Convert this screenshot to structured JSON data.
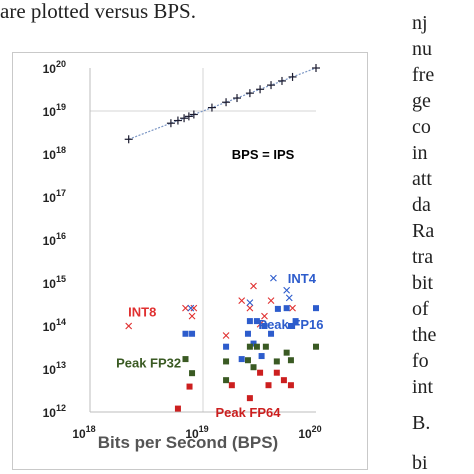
{
  "page": {
    "top_caption": "are plotted versus BPS.",
    "right_column_fragments": [
      "nj",
      "nu",
      "fre",
      "ge",
      "co",
      "in",
      "att",
      "da",
      "Ra",
      "tra",
      "bit",
      "of",
      "the",
      "fo",
      "int",
      "B.",
      "bi"
    ]
  },
  "chart_data": {
    "type": "scatter",
    "title": "",
    "xlabel": "Bits per Second (BPS)",
    "ylabel": "",
    "xscale": "log",
    "yscale": "log",
    "xlim": [
      1e+18,
      1e+20
    ],
    "ylim": [
      1000000000000.0,
      1e+20
    ],
    "x_ticks": [
      1e+18,
      1e+19,
      1e+20
    ],
    "y_ticks": [
      1000000000000.0,
      10000000000000.0,
      100000000000000.0,
      1000000000000000.0,
      1e+16,
      1e+17,
      1e+18,
      1e+19,
      1e+20
    ],
    "x_tick_labels": [
      [
        "10",
        "18"
      ],
      [
        "10",
        "19"
      ],
      [
        "10",
        "20"
      ]
    ],
    "y_tick_labels": [
      [
        "10",
        "12"
      ],
      [
        "10",
        "13"
      ],
      [
        "10",
        "14"
      ],
      [
        "10",
        "15"
      ],
      [
        "10",
        "16"
      ],
      [
        "10",
        "17"
      ],
      [
        "10",
        "18"
      ],
      [
        "10",
        "19"
      ],
      [
        "10",
        "20"
      ]
    ],
    "grid": "major lines at 10^19 (x) and 10^19 (y)",
    "series": [
      {
        "name": "BPS = IPS",
        "marker": "plus",
        "color": "#1a1a2e",
        "line": true,
        "line_color": "#7b96c4",
        "points": [
          [
            2.2e+18,
            2.2e+18
          ],
          [
            5.2e+18,
            5.2e+18
          ],
          [
            6e+18,
            6e+18
          ],
          [
            6.8e+18,
            6.8e+18
          ],
          [
            7.5e+18,
            7.5e+18
          ],
          [
            8.3e+18,
            8.3e+18
          ],
          [
            1.2e+19,
            1.2e+19
          ],
          [
            1.6e+19,
            1.6e+19
          ],
          [
            2e+19,
            2e+19
          ],
          [
            2.6e+19,
            2.6e+19
          ],
          [
            3.2e+19,
            3.2e+19
          ],
          [
            4e+19,
            4e+19
          ],
          [
            5e+19,
            5e+19
          ],
          [
            6.2e+19,
            6.2e+19
          ],
          [
            1e+20,
            1e+20
          ]
        ]
      },
      {
        "name": "INT8",
        "marker": "x",
        "color": "#e03030",
        "points": [
          [
            2.2e+18,
            100000000000000.0
          ],
          [
            7e+18,
            260000000000000.0
          ],
          [
            8e+18,
            170000000000000.0
          ],
          [
            8.3e+18,
            260000000000000.0
          ],
          [
            1.6e+19,
            60000000000000.0
          ],
          [
            2.2e+19,
            390000000000000.0
          ],
          [
            2.6e+19,
            260000000000000.0
          ],
          [
            2.8e+19,
            850000000000000.0
          ],
          [
            3.2e+19,
            110000000000000.0
          ],
          [
            3.5e+19,
            170000000000000.0
          ],
          [
            4e+19,
            390000000000000.0
          ],
          [
            6.2e+19,
            260000000000000.0
          ]
        ]
      },
      {
        "name": "INT4",
        "marker": "x",
        "color": "#2d5ccc",
        "points": [
          [
            7.8e+18,
            260000000000000.0
          ],
          [
            2.6e+19,
            350000000000000.0
          ],
          [
            4.2e+19,
            1300000000000000.0
          ],
          [
            5.5e+19,
            680000000000000.0
          ],
          [
            5.8e+19,
            450000000000000.0
          ]
        ]
      },
      {
        "name": "Peak FP16",
        "marker": "square",
        "color": "#2d5ccc",
        "points": [
          [
            7e+18,
            66000000000000.0
          ],
          [
            8e+18,
            66000000000000.0
          ],
          [
            1.6e+19,
            33000000000000.0
          ],
          [
            2.2e+19,
            17000000000000.0
          ],
          [
            2.5e+19,
            66000000000000.0
          ],
          [
            2.6e+19,
            130000000000000.0
          ],
          [
            2.8e+19,
            39000000000000.0
          ],
          [
            3e+19,
            130000000000000.0
          ],
          [
            3.3e+19,
            20000000000000.0
          ],
          [
            3.5e+19,
            100000000000000.0
          ],
          [
            4e+19,
            66000000000000.0
          ],
          [
            4.6e+19,
            250000000000000.0
          ],
          [
            5.5e+19,
            260000000000000.0
          ],
          [
            6e+19,
            100000000000000.0
          ],
          [
            6.6e+19,
            130000000000000.0
          ],
          [
            1e+20,
            260000000000000.0
          ]
        ]
      },
      {
        "name": "Peak FP32",
        "marker": "square",
        "color": "#3a5a23",
        "points": [
          [
            7e+18,
            17000000000000.0
          ],
          [
            8e+18,
            8000000000000.0
          ],
          [
            1.6e+19,
            15000000000000.0
          ],
          [
            1.6e+19,
            5500000000000.0
          ],
          [
            2.5e+19,
            16000000000000.0
          ],
          [
            2.6e+19,
            33000000000000.0
          ],
          [
            2.8e+19,
            11000000000000.0
          ],
          [
            3e+19,
            33000000000000.0
          ],
          [
            3.6e+19,
            33000000000000.0
          ],
          [
            4.5e+19,
            15000000000000.0
          ],
          [
            5.5e+19,
            24000000000000.0
          ],
          [
            6e+19,
            16000000000000.0
          ],
          [
            1e+20,
            33000000000000.0
          ]
        ]
      },
      {
        "name": "Peak FP64",
        "marker": "square",
        "color": "#cc1f1f",
        "points": [
          [
            6e+18,
            1200000000000.0
          ],
          [
            7.6e+18,
            3900000000000.0
          ],
          [
            1.8e+19,
            4200000000000.0
          ],
          [
            2.6e+19,
            2100000000000.0
          ],
          [
            3.2e+19,
            8200000000000.0
          ],
          [
            3.8e+19,
            4200000000000.0
          ],
          [
            4.5e+19,
            8200000000000.0
          ],
          [
            5.2e+19,
            5500000000000.0
          ],
          [
            6e+19,
            4200000000000.0
          ]
        ]
      }
    ],
    "annotations": [
      {
        "text": "BPS = IPS",
        "color": "#000000",
        "x": 3.4e+19,
        "y": 1e+18
      },
      {
        "text": "INT8",
        "color": "#e03030",
        "x": 2.9e+18,
        "y": 220000000000000.0
      },
      {
        "text": "INT4",
        "color": "#2d5ccc",
        "x": 7.5e+19,
        "y": 1300000000000000.0
      },
      {
        "text": "Peak FP16",
        "color": "#2d5ccc",
        "x": 6e+19,
        "y": 110000000000000.0
      },
      {
        "text": "Peak FP32",
        "color": "#3a5a23",
        "x": 3.3e+18,
        "y": 14000000000000.0
      },
      {
        "text": "Peak FP64",
        "color": "#cc1f1f",
        "x": 2.5e+19,
        "y": 1000000000000.0
      }
    ]
  }
}
